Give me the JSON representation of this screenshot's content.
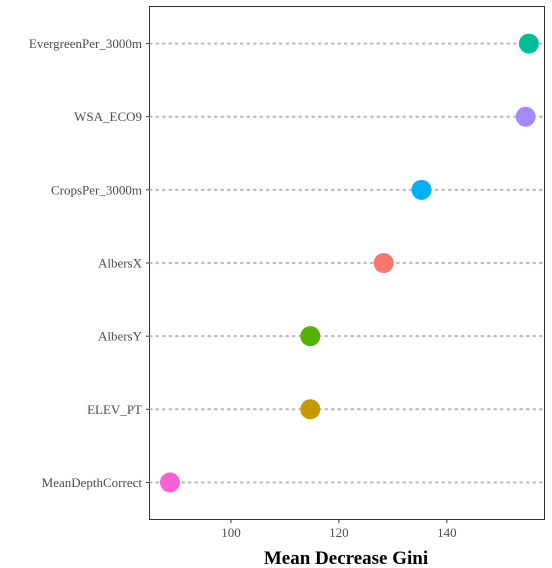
{
  "chart_data": {
    "type": "scatter",
    "style": "dot plot with dotted guide lines",
    "xlabel": "Mean Decrease Gini",
    "ylabel": "",
    "title": "",
    "xlim": [
      85,
      158
    ],
    "x_ticks": [
      100,
      120,
      140
    ],
    "grid": false,
    "legend": "none",
    "categories": [
      "EvergreenPer_3000m",
      "WSA_ECO9",
      "CropsPer_3000m",
      "AlbersX",
      "AlbersY",
      "ELEV_PT",
      "MeanDepthCorrect"
    ],
    "values": [
      155.2,
      154.6,
      135.3,
      128.3,
      114.7,
      114.7,
      88.7
    ],
    "colors": [
      "#00BF96",
      "#A58AFF",
      "#00B0F6",
      "#F8766D",
      "#53B400",
      "#C49A00",
      "#FB61D7"
    ]
  }
}
